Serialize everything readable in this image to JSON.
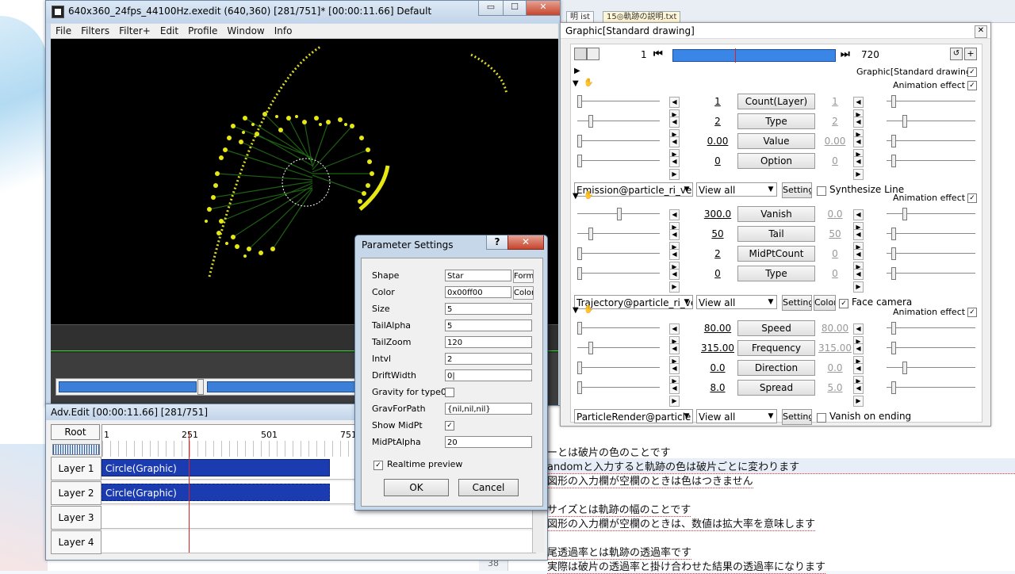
{
  "main_window": {
    "title": "640x360_24fps_44100Hz.exedit (640,360)  [281/751]* [00:00:11.66]  Default",
    "menu": [
      "File",
      "Filters",
      "Filter+",
      "Edit",
      "Profile",
      "Window",
      "Info"
    ],
    "caption_min": "▭",
    "caption_max": "☐",
    "caption_close": "✕"
  },
  "adv_edit": {
    "title": "Adv.Edit [00:00:11.66] [281/751]",
    "root_label": "Root",
    "ruler_ticks": [
      "1",
      "251",
      "501",
      "751"
    ],
    "layers": [
      {
        "label": "Layer 1",
        "clip": "Circle(Graphic)"
      },
      {
        "label": "Layer 2",
        "clip": "Circle(Graphic)"
      },
      {
        "label": "Layer 3",
        "clip": ""
      },
      {
        "label": "Layer 4",
        "clip": ""
      }
    ]
  },
  "graphic_panel": {
    "title": "Graphic[Standard drawing]",
    "frame_start": "1",
    "frame_end": "720",
    "header_label": "Graphic[Standard drawing]",
    "sections": [
      {
        "header": "Animation effect",
        "rows": [
          {
            "value": "1",
            "label": "Count(Layer)",
            "value2": "1"
          },
          {
            "value": "2",
            "label": "Type",
            "value2": "2"
          },
          {
            "value": "0.00",
            "label": "Value",
            "value2": "0.00"
          },
          {
            "value": "0",
            "label": "Option",
            "value2": "0"
          }
        ],
        "combo": "Emission@particle_ri_ve",
        "view": "View all",
        "setting": "Setting",
        "extra_check": "Synthesize Line"
      },
      {
        "header": "Animation effect",
        "rows": [
          {
            "value": "300.0",
            "label": "Vanish",
            "value2": "0.0"
          },
          {
            "value": "50",
            "label": "Tail",
            "value2": "50"
          },
          {
            "value": "2",
            "label": "MidPtCount",
            "value2": "0"
          },
          {
            "value": "0",
            "label": "Type",
            "value2": "0"
          }
        ],
        "combo": "Trajectory@particle_ri_ve",
        "view": "View all",
        "setting": "Setting",
        "color_btn": "Color",
        "extra_check": "Face camera"
      },
      {
        "header": "Animation effect",
        "rows": [
          {
            "value": "80.00",
            "label": "Speed",
            "value2": "80.00"
          },
          {
            "value": "315.00",
            "label": "Frequency",
            "value2": "315.00"
          },
          {
            "value": "0.0",
            "label": "Direction",
            "value2": "0.0"
          },
          {
            "value": "8.0",
            "label": "Spread",
            "value2": "5.0"
          }
        ],
        "combo": "ParticleRender@particle",
        "view": "View all",
        "setting": "Setting",
        "extra_check": "Vanish on ending"
      }
    ]
  },
  "dialog": {
    "title": "Parameter Settings",
    "help": "?",
    "close": "✕",
    "fields": [
      {
        "label": "Shape",
        "value": "Star",
        "button": "Form"
      },
      {
        "label": "Color",
        "value": "0x00ff00",
        "button": "Color"
      },
      {
        "label": "Size",
        "value": "5"
      },
      {
        "label": "TailAlpha",
        "value": "5"
      },
      {
        "label": "TailZoom",
        "value": "120"
      },
      {
        "label": "Intvl",
        "value": "2"
      },
      {
        "label": "DriftWidth",
        "value": "0|"
      }
    ],
    "gravity_label": "Gravity for type0",
    "gravforpath_label": "GravForPath",
    "gravforpath_value": "{nil,nil,nil}",
    "showmidpt_label": "Show MidPt",
    "midptalpha_label": "MidPtAlpha",
    "midptalpha_value": "20",
    "realtime_label": "Realtime preview",
    "ok": "OK",
    "cancel": "Cancel"
  },
  "background_doc": {
    "tab_1": "明 ist",
    "tab_2": "15◎軌跡の説明.txt",
    "lines": [
      "ーとは破片の色のことです",
      "andomと入力すると軌跡の色は破片ごとに変わります",
      "図形の入力欄が空欄のときは色はつきません",
      "サイズとは軌跡の幅のことです",
      "図形の入力欄が空欄のときは、数値は拡大率を意味します",
      "尾透過率とは軌跡の透過率です",
      "実際は破片の透過率と掛け合わせた結果の透過率になります"
    ],
    "line_number": "38"
  }
}
